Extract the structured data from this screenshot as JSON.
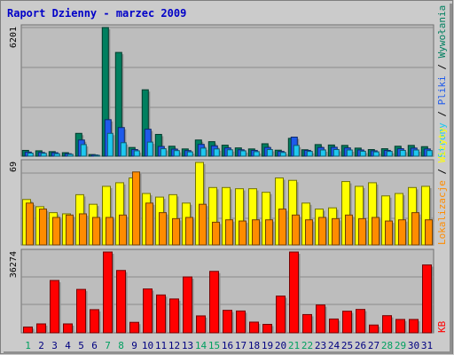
{
  "chart_data": [
    {
      "type": "bar",
      "title": "Raport Dzienny -  marzec 2009",
      "ymax_label": "6201",
      "ylim": [
        0,
        6201
      ],
      "grid": true,
      "legend": [
        {
          "name": "Wywołania",
          "color": "#007f5f"
        },
        {
          "name": "Pliki",
          "color": "#1e5aeb"
        },
        {
          "name": "Strony",
          "color": "#1ec8f0"
        }
      ],
      "categories": [
        "1",
        "2",
        "3",
        "4",
        "5",
        "6",
        "7",
        "8",
        "9",
        "10",
        "11",
        "12",
        "13",
        "14",
        "15",
        "16",
        "17",
        "18",
        "19",
        "20",
        "21",
        "22",
        "23",
        "24",
        "25",
        "26",
        "27",
        "28",
        "29",
        "30",
        "31"
      ],
      "weekend_days": [
        "1",
        "7",
        "8",
        "14",
        "15",
        "21",
        "22",
        "28",
        "29"
      ],
      "series": [
        {
          "name": "Wywołania",
          "values": [
            280,
            260,
            220,
            170,
            1100,
            80,
            6201,
            5000,
            420,
            3200,
            1050,
            480,
            350,
            780,
            700,
            530,
            400,
            350,
            600,
            290,
            860,
            310,
            560,
            540,
            520,
            390,
            320,
            360,
            480,
            520,
            460
          ]
        },
        {
          "name": "Pliki",
          "values": [
            200,
            180,
            170,
            120,
            780,
            60,
            1760,
            1380,
            320,
            1300,
            470,
            340,
            270,
            570,
            500,
            400,
            310,
            280,
            420,
            230,
            920,
            280,
            420,
            430,
            400,
            300,
            260,
            280,
            360,
            390,
            350
          ]
        },
        {
          "name": "Strony",
          "values": [
            150,
            140,
            120,
            90,
            560,
            40,
            1100,
            650,
            260,
            680,
            360,
            270,
            210,
            390,
            350,
            310,
            260,
            220,
            320,
            180,
            520,
            230,
            300,
            320,
            300,
            240,
            210,
            230,
            280,
            300,
            270
          ]
        }
      ]
    },
    {
      "type": "bar",
      "ymax_label": "69",
      "ylim": [
        0,
        69
      ],
      "grid": true,
      "legend": [
        {
          "name": "Lokalizacje",
          "color": "#ff8c00"
        },
        {
          "name": "Wizyty",
          "color": "#ffff00"
        }
      ],
      "categories": [
        "1",
        "2",
        "3",
        "4",
        "5",
        "6",
        "7",
        "8",
        "9",
        "10",
        "11",
        "12",
        "13",
        "14",
        "15",
        "16",
        "17",
        "18",
        "19",
        "20",
        "21",
        "22",
        "23",
        "24",
        "25",
        "26",
        "27",
        "28",
        "29",
        "30",
        "31"
      ],
      "series": [
        {
          "name": "Wizyty",
          "values": [
            38,
            32,
            27,
            26,
            42,
            34,
            49,
            52,
            56,
            43,
            40,
            42,
            35,
            69,
            48,
            48,
            47,
            47,
            44,
            56,
            54,
            35,
            30,
            31,
            53,
            49,
            52,
            41,
            43,
            48,
            49
          ]
        },
        {
          "name": "Lokalizacje",
          "values": [
            35,
            30,
            23,
            25,
            26,
            23,
            23,
            25,
            61,
            35,
            27,
            22,
            23,
            34,
            19,
            21,
            20,
            21,
            21,
            30,
            25,
            21,
            23,
            22,
            25,
            22,
            23,
            20,
            21,
            27,
            21
          ]
        }
      ]
    },
    {
      "type": "bar",
      "ymax_label": "36274",
      "ylim": [
        0,
        36274
      ],
      "grid": true,
      "legend": [
        {
          "name": "KB",
          "color": "#ff0000"
        }
      ],
      "categories": [
        "1",
        "2",
        "3",
        "4",
        "5",
        "6",
        "7",
        "8",
        "9",
        "10",
        "11",
        "12",
        "13",
        "14",
        "15",
        "16",
        "17",
        "18",
        "19",
        "20",
        "21",
        "22",
        "23",
        "24",
        "25",
        "26",
        "27",
        "28",
        "29",
        "30",
        "31"
      ],
      "series": [
        {
          "name": "KB",
          "values": [
            2600,
            4000,
            23500,
            4000,
            19500,
            10400,
            36274,
            28000,
            4700,
            19700,
            17000,
            15200,
            25100,
            7600,
            27600,
            10100,
            9800,
            4800,
            3800,
            16500,
            36274,
            8200,
            12500,
            6200,
            9700,
            10500,
            3500,
            7700,
            6000,
            6000,
            30500
          ]
        }
      ]
    }
  ],
  "colors": {
    "frame_bg": "#cbcbcb",
    "frame_border": "#7f7f7f",
    "plot_bg": "#bdbdbd",
    "title": "#0000c8",
    "weekday_label": "#000080",
    "weekend_label": "#00a060"
  }
}
